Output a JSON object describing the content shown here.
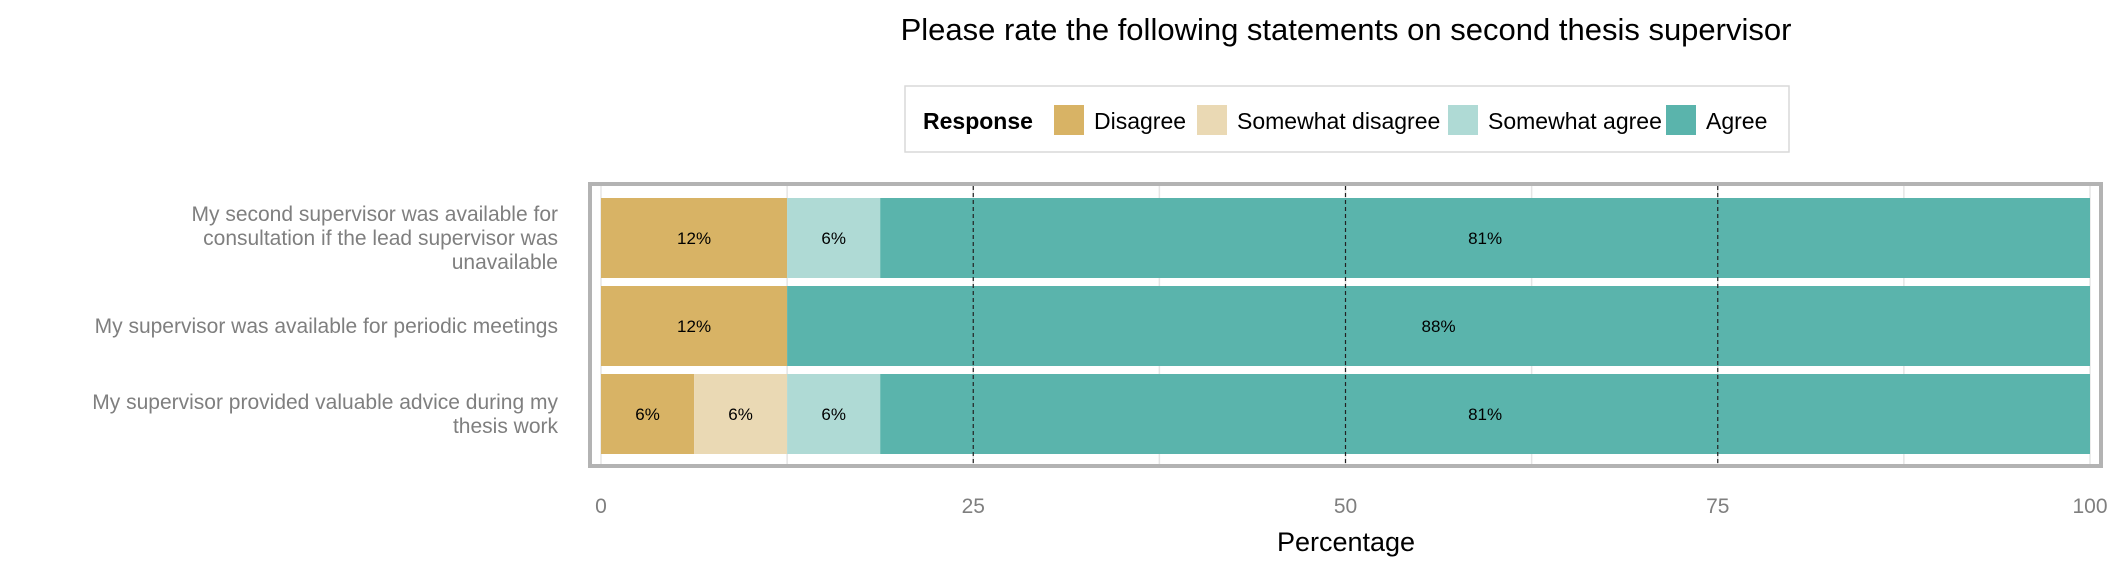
{
  "chart_data": {
    "type": "bar",
    "orientation": "horizontal",
    "stacked": true,
    "title": "Please rate the following statements on second thesis supervisor",
    "xlabel": "Percentage",
    "ylabel": "",
    "xlim": [
      0,
      100
    ],
    "xticks": [
      "0",
      "25",
      "50",
      "75",
      "100"
    ],
    "legend": {
      "title": "Response",
      "position": "top"
    },
    "categories": [
      [
        "My second supervisor was available for",
        "consultation if the lead supervisor was",
        "unavailable"
      ],
      [
        "My supervisor was available for periodic meetings"
      ],
      [
        "My supervisor provided valuable advice during my",
        "thesis work"
      ]
    ],
    "series": [
      {
        "name": "Disagree",
        "color": "#d8b365",
        "values": [
          12.5,
          12.5,
          6.25
        ],
        "labels": [
          "12%",
          "12%",
          "6%"
        ]
      },
      {
        "name": "Somewhat disagree",
        "color": "#ead9b4",
        "values": [
          0,
          0,
          6.25
        ],
        "labels": [
          "",
          "",
          "6%"
        ]
      },
      {
        "name": "Somewhat agree",
        "color": "#afdad5",
        "values": [
          6.25,
          0,
          6.25
        ],
        "labels": [
          "6%",
          "",
          "6%"
        ]
      },
      {
        "name": "Agree",
        "color": "#5ab4ac",
        "values": [
          81.25,
          87.5,
          81.25
        ],
        "labels": [
          "81%",
          "88%",
          "81%"
        ]
      }
    ],
    "grid": true,
    "reference_lines": [
      25,
      50,
      75
    ]
  }
}
